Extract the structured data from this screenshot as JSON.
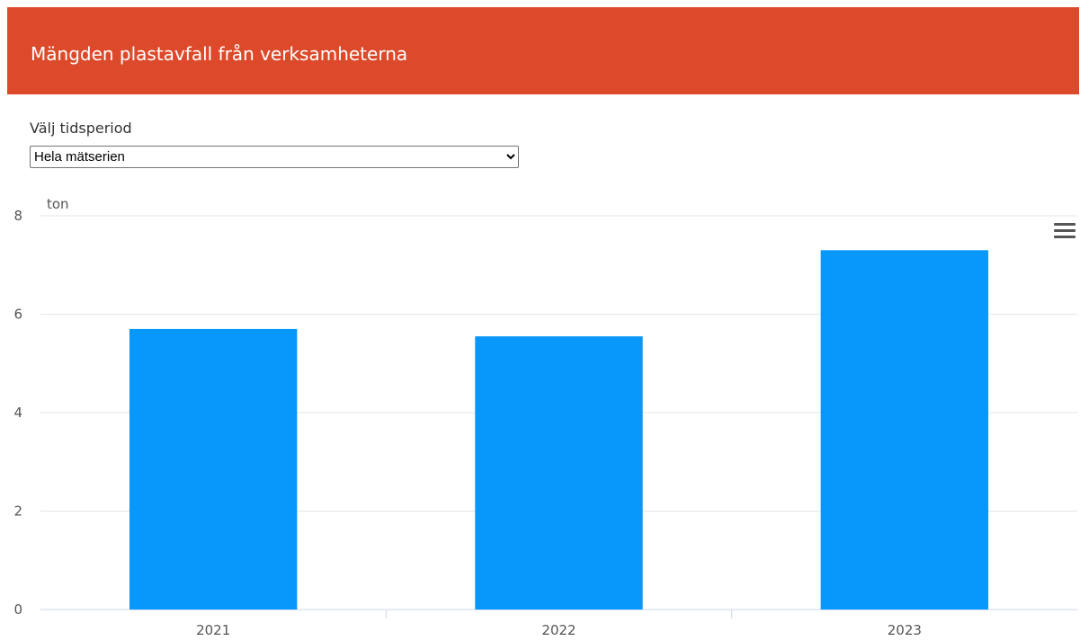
{
  "header": {
    "title": "Mängden plastavfall från verksamheterna"
  },
  "filter": {
    "label": "Välj tidsperiod",
    "selected": "Hela mätserien"
  },
  "colors": {
    "header_bg": "#dd4a2b",
    "bar": "#0897fb"
  },
  "chart_data": {
    "type": "bar",
    "categories": [
      "2021",
      "2022",
      "2023"
    ],
    "values": [
      5.7,
      5.55,
      7.3
    ],
    "ylabel": "ton",
    "ylim": [
      0,
      8
    ],
    "yticks": [
      0,
      2,
      4,
      6,
      8
    ],
    "grid": true,
    "legend": "none"
  }
}
